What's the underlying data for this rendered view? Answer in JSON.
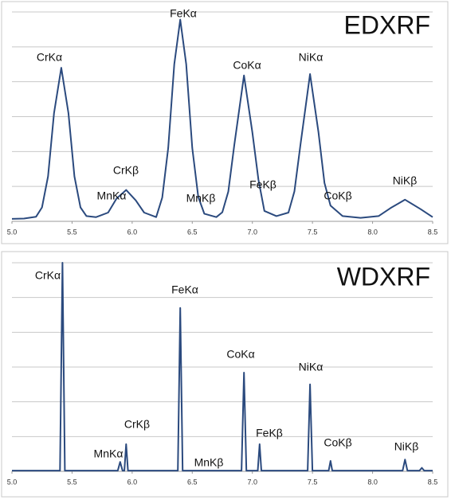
{
  "chart_data": [
    {
      "type": "line",
      "title": "EDXRF",
      "color": "#2b4a7e",
      "annotations": [
        "CrKα",
        "FeKα",
        "CoKα",
        "NiKα",
        "CrKβ",
        "MnKα",
        "MnKβ",
        "FeKβ",
        "CoKβ",
        "NiKβ"
      ],
      "x": [
        5.0,
        5.1,
        5.2,
        5.25,
        5.3,
        5.35,
        5.41,
        5.47,
        5.52,
        5.57,
        5.62,
        5.7,
        5.8,
        5.87,
        5.95,
        6.03,
        6.1,
        6.2,
        6.25,
        6.3,
        6.35,
        6.4,
        6.45,
        6.5,
        6.55,
        6.6,
        6.7,
        6.75,
        6.8,
        6.85,
        6.93,
        7.0,
        7.05,
        7.1,
        7.2,
        7.3,
        7.35,
        7.4,
        7.48,
        7.55,
        7.6,
        7.65,
        7.75,
        7.9,
        8.05,
        8.15,
        8.27,
        8.4,
        8.5
      ],
      "values": [
        0.07,
        0.08,
        0.13,
        0.4,
        1.29,
        3.1,
        4.4,
        3.1,
        1.29,
        0.4,
        0.15,
        0.12,
        0.25,
        0.65,
        0.9,
        0.6,
        0.25,
        0.12,
        0.68,
        2.1,
        4.5,
        5.78,
        4.5,
        2.1,
        0.7,
        0.22,
        0.12,
        0.26,
        0.85,
        2.2,
        4.18,
        2.55,
        1.2,
        0.3,
        0.15,
        0.25,
        0.86,
        2.2,
        4.22,
        2.55,
        1.1,
        0.45,
        0.15,
        0.1,
        0.15,
        0.38,
        0.62,
        0.35,
        0.12
      ],
      "xlim": [
        5.0,
        8.5
      ],
      "ylim": [
        0,
        6
      ],
      "ygrid": [
        0,
        1,
        2,
        3,
        4,
        5,
        6
      ],
      "xticks": [
        {
          "value": 5.0,
          "label": "5.0"
        },
        5.5,
        {
          "value": 6.0,
          "label": "6.0"
        },
        6.5,
        {
          "value": 7.0,
          "label": "7.0"
        },
        7.5,
        {
          "value": 8.0,
          "label": "8.0"
        },
        8.5
      ]
    },
    {
      "type": "line",
      "title": "WDXRF",
      "color": "#2b4a7e",
      "annotations": [
        "CrKα",
        "FeKα",
        "CoKα",
        "NiKα",
        "CrKβ",
        "MnKα",
        "MnKβ",
        "FeKβ",
        "CoKβ",
        "NiKβ"
      ],
      "x": [
        5.0,
        5.4,
        5.42,
        5.44,
        5.88,
        5.9,
        5.92,
        5.935,
        5.95,
        5.965,
        6.38,
        6.4,
        6.42,
        6.91,
        6.93,
        6.95,
        7.045,
        7.06,
        7.075,
        7.46,
        7.48,
        7.5,
        7.635,
        7.65,
        7.665,
        8.25,
        8.27,
        8.29,
        8.39,
        8.41,
        8.43,
        8.5
      ],
      "values": [
        0.02,
        0.02,
        6.0,
        0.02,
        0.02,
        0.27,
        0.02,
        0.02,
        0.78,
        0.02,
        0.02,
        4.7,
        0.02,
        0.02,
        2.84,
        0.02,
        0.02,
        0.78,
        0.02,
        0.02,
        2.5,
        0.02,
        0.02,
        0.3,
        0.02,
        0.02,
        0.34,
        0.02,
        0.02,
        0.1,
        0.02,
        0.02
      ],
      "xlim": [
        5.0,
        8.5
      ],
      "ylim": [
        0,
        6
      ],
      "ygrid": [
        0,
        1,
        2,
        3,
        4,
        5,
        6
      ],
      "xticks": [
        {
          "value": 5.0,
          "label": "5.0"
        },
        5.5,
        {
          "value": 6.0,
          "label": "6.0"
        },
        6.5,
        {
          "value": 7.0,
          "label": "7.0"
        },
        7.5,
        {
          "value": 8.0,
          "label": "8.0"
        },
        8.5
      ]
    }
  ]
}
